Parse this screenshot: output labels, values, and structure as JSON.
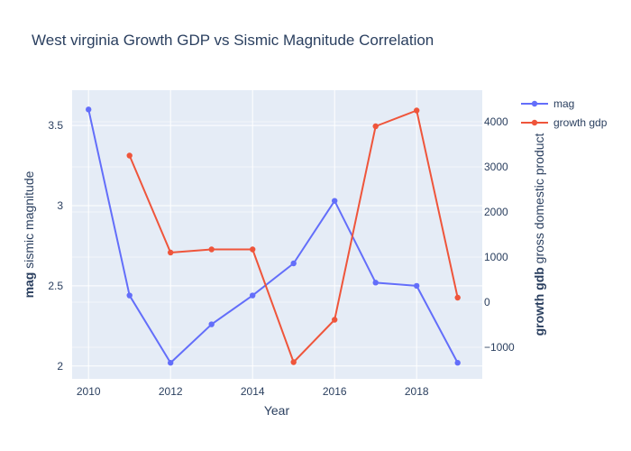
{
  "chart_data": {
    "type": "line",
    "title": "West virginia Growth GDP vs Sismic Magnitude Correlation",
    "xlabel": "Year",
    "ylabel_bold": "mag",
    "ylabel_rest": " sismic magnitude",
    "y2label_bold": "growth gdb",
    "y2label_rest": " gross domestic product",
    "x_ticks": [
      2010,
      2012,
      2014,
      2016,
      2018
    ],
    "y_ticks": [
      2,
      2.5,
      3,
      3.5
    ],
    "y2_ticks": [
      -1000,
      0,
      1000,
      2000,
      3000,
      4000
    ],
    "xlim": [
      2009.6,
      2019.6
    ],
    "ylim": [
      1.92,
      3.72
    ],
    "y2lim": [
      -1700,
      4700
    ],
    "grid": true,
    "legend_position": "top-right",
    "series": [
      {
        "name": "mag",
        "axis": "left",
        "color": "#636efa",
        "x": [
          2010,
          2011,
          2012,
          2013,
          2014,
          2015,
          2016,
          2017,
          2018,
          2019
        ],
        "values": [
          3.6,
          2.44,
          2.02,
          2.26,
          2.44,
          2.64,
          3.03,
          2.52,
          2.5,
          2.02
        ]
      },
      {
        "name": "growth gdp",
        "axis": "right",
        "color": "#ef553b",
        "x": [
          2011,
          2012,
          2013,
          2014,
          2015,
          2016,
          2017,
          2018,
          2019
        ],
        "values": [
          3250,
          1100,
          1170,
          1170,
          -1330,
          -390,
          3900,
          4250,
          100
        ]
      }
    ]
  }
}
